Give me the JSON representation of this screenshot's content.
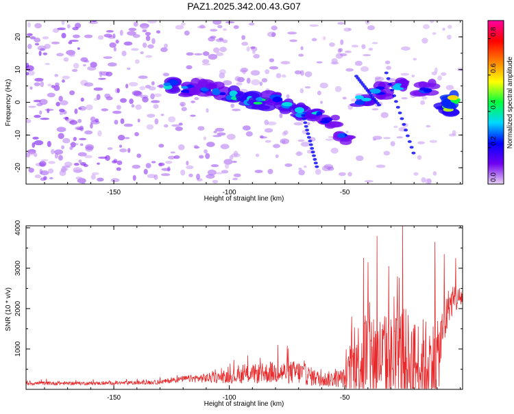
{
  "chart_data": [
    {
      "type": "heatmap",
      "title": "PAZ1.2025.342.00.43.G07",
      "xlabel": "Height of straight line (km)",
      "ylabel": "Frequency (Hz)",
      "xlim": [
        -188,
        1
      ],
      "ylim": [
        -25,
        25
      ],
      "x_ticks": [
        -150,
        -100,
        -50
      ],
      "y_ticks": [
        -20,
        -10,
        0,
        10,
        20
      ],
      "grid": false,
      "colorbar": {
        "label": "Normalized spectral amplitude",
        "range": [
          0.0,
          0.9
        ],
        "ticks": [
          0.0,
          0.2,
          0.4,
          0.6,
          0.8
        ],
        "colormap": [
          "#e8d4f5",
          "#6f00f0",
          "#0000ff",
          "#00d8ff",
          "#00ff40",
          "#ffff00",
          "#ff8000",
          "#ff0000",
          "#ff00a0"
        ]
      },
      "ridge": [
        {
          "x": -125,
          "y": 5.2,
          "a": 0.4
        },
        {
          "x": -118,
          "y": 4.0,
          "a": 0.35
        },
        {
          "x": -112,
          "y": 4.5,
          "a": 0.3
        },
        {
          "x": -105,
          "y": 3.5,
          "a": 0.32
        },
        {
          "x": -98,
          "y": 2.0,
          "a": 0.45
        },
        {
          "x": -92,
          "y": 0.5,
          "a": 0.5
        },
        {
          "x": -86,
          "y": 0.0,
          "a": 0.45
        },
        {
          "x": -80,
          "y": 1.5,
          "a": 0.35
        },
        {
          "x": -74,
          "y": -1.0,
          "a": 0.4
        },
        {
          "x": -68,
          "y": -3.0,
          "a": 0.42
        },
        {
          "x": -62,
          "y": -4.0,
          "a": 0.38
        },
        {
          "x": -57,
          "y": -6.0,
          "a": 0.3
        },
        {
          "x": -51,
          "y": -11.0,
          "a": 0.3
        },
        {
          "x": -42,
          "y": 0.5,
          "a": 0.4
        },
        {
          "x": -35,
          "y": 3.5,
          "a": 0.32
        },
        {
          "x": -26,
          "y": 5.0,
          "a": 0.34
        },
        {
          "x": -15,
          "y": 4.5,
          "a": 0.3
        },
        {
          "x": -6,
          "y": -1.5,
          "a": 0.55
        },
        {
          "x": -3,
          "y": 0.5,
          "a": 0.7
        }
      ]
    },
    {
      "type": "line",
      "xlabel": "Height of straight line (km)",
      "ylabel": "SNR (10 * v/v)",
      "xlim": [
        -188,
        1
      ],
      "ylim": [
        0,
        4050
      ],
      "x_ticks": [
        -150,
        -100,
        -50
      ],
      "y_ticks": [
        1000,
        2000,
        3000,
        4000
      ],
      "grid": false,
      "color": "#e8282a",
      "envelope": {
        "x": [
          -188,
          -160,
          -140,
          -130,
          -120,
          -110,
          -100,
          -90,
          -80,
          -70,
          -60,
          -50,
          -45,
          -40,
          -35,
          -30,
          -25,
          -20,
          -15,
          -10,
          -5,
          1
        ],
        "base": [
          150,
          150,
          160,
          180,
          260,
          280,
          300,
          380,
          420,
          420,
          240,
          280,
          700,
          900,
          800,
          700,
          800,
          600,
          600,
          700,
          2100,
          2300
        ],
        "amp": [
          80,
          70,
          80,
          90,
          120,
          200,
          250,
          400,
          450,
          500,
          300,
          400,
          1500,
          2200,
          1800,
          1900,
          2200,
          1900,
          2000,
          1600,
          700,
          400
        ]
      },
      "peaks": [
        {
          "x": -25,
          "y": 4050
        },
        {
          "x": -36,
          "y": 3800
        },
        {
          "x": -11,
          "y": 3650
        },
        {
          "x": -7,
          "y": 3350
        },
        {
          "x": -2,
          "y": 3250
        },
        {
          "x": -40,
          "y": 3150
        },
        {
          "x": -31,
          "y": 3050
        },
        {
          "x": -47,
          "y": 1800
        },
        {
          "x": -79,
          "y": 1100
        },
        {
          "x": -92,
          "y": 840
        }
      ]
    }
  ]
}
